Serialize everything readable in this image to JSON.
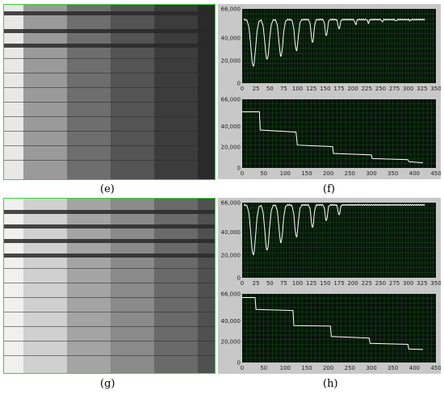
{
  "labels": {
    "e": "(e)",
    "f": "(f)",
    "g": "(g)",
    "h": "(h)"
  },
  "colors": {
    "plot_bg": "#07140a",
    "grid": "#2a8a2a",
    "trace": "#ffffff",
    "frame": "#c8c8c8",
    "img_border": "#39d139"
  },
  "chart_data": [
    {
      "type": "line",
      "xlim": [
        0,
        350
      ],
      "ylim": [
        0,
        66000
      ],
      "xticks": [
        "0",
        "25",
        "50",
        "75",
        "100",
        "125",
        "150",
        "175",
        "200",
        "225",
        "250",
        "275",
        "300",
        "325",
        "350"
      ],
      "yticks": [
        "0",
        "20,000",
        "40,000",
        "66,000"
      ],
      "xtick_values": [
        0,
        25,
        50,
        75,
        100,
        125,
        150,
        175,
        200,
        225,
        250,
        275,
        300,
        325,
        350
      ],
      "ytick_values": [
        0,
        20000,
        40000,
        66000
      ],
      "grid": true,
      "baseline": 56500,
      "x_end": 330,
      "dips": [
        [
          20,
          15000,
          6
        ],
        [
          45,
          21000,
          5.5
        ],
        [
          70,
          24000,
          5
        ],
        [
          98,
          29000,
          4.5
        ],
        [
          127,
          36000,
          3.5
        ],
        [
          152,
          42000,
          3
        ],
        [
          175,
          48000,
          2.5
        ],
        [
          205,
          52000,
          2
        ],
        [
          228,
          53500,
          1.8
        ],
        [
          253,
          54500,
          1.6
        ],
        [
          278,
          55000,
          1.5
        ],
        [
          303,
          55500,
          1.4
        ]
      ]
    },
    {
      "type": "line",
      "xlim": [
        0,
        450
      ],
      "ylim": [
        0,
        66000
      ],
      "xticks": [
        "0",
        "50",
        "100",
        "150",
        "200",
        "250",
        "300",
        "350",
        "400",
        "450"
      ],
      "yticks": [
        "0",
        "20,000",
        "40,000",
        "66,000"
      ],
      "xtick_values": [
        0,
        50,
        100,
        150,
        200,
        250,
        300,
        350,
        400,
        450
      ],
      "ytick_values": [
        0,
        20000,
        40000,
        66000
      ],
      "grid": true,
      "steps": [
        [
          0,
          54000
        ],
        [
          40,
          54000
        ],
        [
          42,
          36500
        ],
        [
          125,
          34500
        ],
        [
          128,
          22000
        ],
        [
          210,
          20500
        ],
        [
          212,
          14000
        ],
        [
          300,
          12500
        ],
        [
          302,
          9000
        ],
        [
          385,
          8000
        ],
        [
          387,
          6000
        ],
        [
          420,
          5000
        ]
      ]
    },
    {
      "type": "line",
      "xlim": [
        0,
        350
      ],
      "ylim": [
        0,
        66000
      ],
      "xticks": [
        "0",
        "25",
        "50",
        "75",
        "100",
        "125",
        "150",
        "175",
        "200",
        "225",
        "250",
        "275",
        "300",
        "325",
        "350"
      ],
      "yticks": [
        "0",
        "20,000",
        "40,000",
        "66,000"
      ],
      "xtick_values": [
        0,
        25,
        50,
        75,
        100,
        125,
        150,
        175,
        200,
        225,
        250,
        275,
        300,
        325,
        350
      ],
      "ytick_values": [
        0,
        20000,
        40000,
        66000
      ],
      "grid": true,
      "baseline": 64000,
      "x_end": 330,
      "dips": [
        [
          20,
          20000,
          6
        ],
        [
          45,
          24000,
          5.5
        ],
        [
          70,
          31000,
          5
        ],
        [
          98,
          36000,
          4.5
        ],
        [
          127,
          44000,
          3.5
        ],
        [
          152,
          50000,
          3
        ],
        [
          175,
          55000,
          2.5
        ]
      ]
    },
    {
      "type": "line",
      "xlim": [
        0,
        450
      ],
      "ylim": [
        0,
        66000
      ],
      "xticks": [
        "0",
        "50",
        "100",
        "150",
        "200",
        "250",
        "300",
        "350",
        "400",
        "450"
      ],
      "yticks": [
        "0",
        "20,000",
        "40,000",
        "66,000"
      ],
      "xtick_values": [
        0,
        50,
        100,
        150,
        200,
        250,
        300,
        350,
        400,
        450
      ],
      "ytick_values": [
        0,
        20000,
        40000,
        66000
      ],
      "grid": true,
      "steps": [
        [
          0,
          62500
        ],
        [
          30,
          62500
        ],
        [
          32,
          51000
        ],
        [
          118,
          50000
        ],
        [
          120,
          35500
        ],
        [
          205,
          35000
        ],
        [
          207,
          25000
        ],
        [
          295,
          23500
        ],
        [
          297,
          18500
        ],
        [
          385,
          17500
        ],
        [
          387,
          13000
        ],
        [
          420,
          12500
        ]
      ]
    }
  ]
}
